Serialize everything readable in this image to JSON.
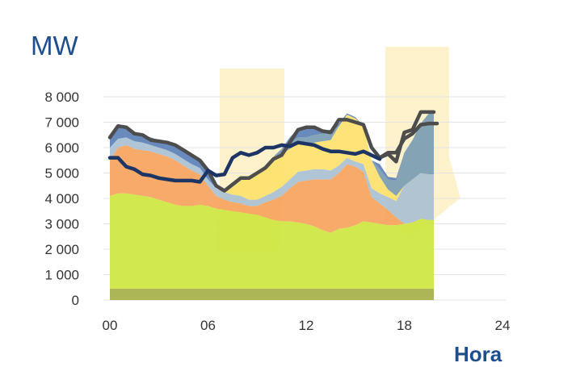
{
  "chart_data": {
    "type": "area",
    "ylabel": "MW",
    "xlabel": "Hora",
    "ylim": [
      0,
      8000
    ],
    "xlim": [
      0,
      24
    ],
    "yticks": [
      0,
      1000,
      2000,
      3000,
      4000,
      5000,
      6000,
      7000,
      8000
    ],
    "ytick_labels": [
      "0",
      "1 000",
      "2 000",
      "3 000",
      "4 000",
      "5 000",
      "6 000",
      "7 000",
      "8 000"
    ],
    "xticks": [
      0,
      6,
      12,
      18,
      24
    ],
    "xtick_labels": [
      "00",
      "06",
      "12",
      "18",
      "24"
    ],
    "grid": true,
    "x": [
      0,
      0.5,
      1,
      1.5,
      2,
      2.5,
      3,
      3.5,
      4,
      4.5,
      5,
      5.5,
      6,
      6.5,
      7,
      7.5,
      8,
      8.5,
      9,
      9.5,
      10,
      10.5,
      11,
      11.5,
      12,
      12.5,
      13,
      13.5,
      14,
      14.5,
      15,
      15.5,
      16,
      16.5,
      17,
      17.5,
      18,
      18.5,
      19,
      19.5,
      19.8
    ],
    "stack": [
      {
        "color": "#a5b049",
        "values": [
          450,
          450,
          450,
          450,
          450,
          450,
          450,
          450,
          450,
          450,
          450,
          450,
          450,
          450,
          450,
          450,
          450,
          450,
          450,
          450,
          450,
          450,
          450,
          450,
          450,
          450,
          450,
          450,
          450,
          450,
          450,
          450,
          450,
          450,
          450,
          450,
          450,
          450,
          450,
          450,
          450
        ]
      },
      {
        "color": "#cde63f",
        "values": [
          3650,
          3750,
          3750,
          3700,
          3650,
          3600,
          3500,
          3400,
          3300,
          3250,
          3250,
          3300,
          3250,
          3150,
          3100,
          3050,
          3000,
          2950,
          2900,
          2800,
          2700,
          2650,
          2650,
          2600,
          2550,
          2450,
          2300,
          2200,
          2350,
          2400,
          2500,
          2650,
          2600,
          2550,
          2500,
          2500,
          2550,
          2600,
          2750,
          2700,
          2700
        ]
      },
      {
        "color": "#f6a35c",
        "values": [
          1400,
          1800,
          1900,
          1800,
          1800,
          1800,
          1800,
          1800,
          1750,
          1600,
          1400,
          1200,
          800,
          500,
          400,
          350,
          350,
          300,
          350,
          600,
          800,
          1000,
          1300,
          1600,
          1700,
          1850,
          2000,
          2100,
          2200,
          2500,
          2300,
          1950,
          1000,
          800,
          600,
          300,
          0,
          0,
          0,
          0,
          0
        ]
      },
      {
        "color": "#a9c0d3",
        "values": [
          500,
          350,
          300,
          300,
          300,
          250,
          250,
          250,
          250,
          250,
          250,
          250,
          250,
          300,
          300,
          300,
          300,
          250,
          250,
          250,
          300,
          350,
          350,
          400,
          400,
          400,
          400,
          350,
          300,
          250,
          200,
          300,
          350,
          400,
          500,
          650,
          1500,
          1700,
          1800,
          1800,
          1800
        ]
      },
      {
        "color": "#fde16d",
        "values": [
          0,
          0,
          0,
          0,
          0,
          0,
          0,
          0,
          0,
          0,
          0,
          0,
          0,
          0,
          0,
          300,
          600,
          850,
          1100,
          1200,
          1400,
          1300,
          1200,
          1100,
          1000,
          1050,
          1100,
          1200,
          1550,
          1700,
          1700,
          1500,
          1100,
          650,
          300,
          200,
          0,
          0,
          0,
          0,
          0
        ]
      },
      {
        "color": "#7a9cb2",
        "values": [
          0,
          0,
          0,
          0,
          0,
          0,
          0,
          0,
          0,
          0,
          0,
          0,
          0,
          0,
          0,
          0,
          0,
          0,
          0,
          0,
          0,
          200,
          250,
          250,
          300,
          300,
          300,
          300,
          0,
          0,
          0,
          0,
          0,
          300,
          400,
          600,
          1300,
          1550,
          1950,
          2400,
          2400
        ]
      },
      {
        "color": "#5b80b6",
        "values": [
          500,
          500,
          400,
          350,
          300,
          300,
          300,
          300,
          300,
          300,
          300,
          300,
          300,
          0,
          0,
          0,
          0,
          0,
          0,
          0,
          0,
          0,
          200,
          350,
          400,
          300,
          100,
          100,
          100,
          50,
          50,
          0,
          0,
          200,
          100,
          100,
          0,
          0,
          0,
          0,
          0
        ]
      }
    ],
    "series": [
      {
        "color": "#4d4d4d",
        "values": [
          6400,
          6850,
          6800,
          6550,
          6500,
          6300,
          6250,
          6200,
          6100,
          5900,
          5700,
          5500,
          5100,
          4500,
          4300,
          4550,
          4800,
          4800,
          5000,
          5200,
          5550,
          5700,
          6200,
          6700,
          6800,
          6800,
          6650,
          6600,
          7100,
          7100,
          7000,
          6900,
          6000,
          5600,
          5750,
          5450,
          6600,
          6700,
          7400,
          7400,
          7400
        ]
      },
      {
        "color": "#1c3565",
        "values": [
          5600,
          5600,
          5250,
          5150,
          4950,
          4900,
          4800,
          4750,
          4700,
          4700,
          4700,
          4650,
          5100,
          4900,
          4950,
          5600,
          5800,
          5700,
          5800,
          6000,
          6000,
          6100,
          6050,
          6200,
          6150,
          6100,
          5950,
          5850,
          5850,
          5800,
          5750,
          5850,
          5700,
          5550,
          null,
          null,
          null,
          null,
          null,
          null,
          null
        ]
      }
    ],
    "final_line": {
      "color": "#4d4d4d",
      "x": [
        16.5,
        17,
        17.5,
        18,
        18.5,
        19,
        19.5,
        20
      ],
      "values": [
        5600,
        5800,
        5800,
        6350,
        6550,
        6900,
        6950,
        6950
      ]
    }
  }
}
